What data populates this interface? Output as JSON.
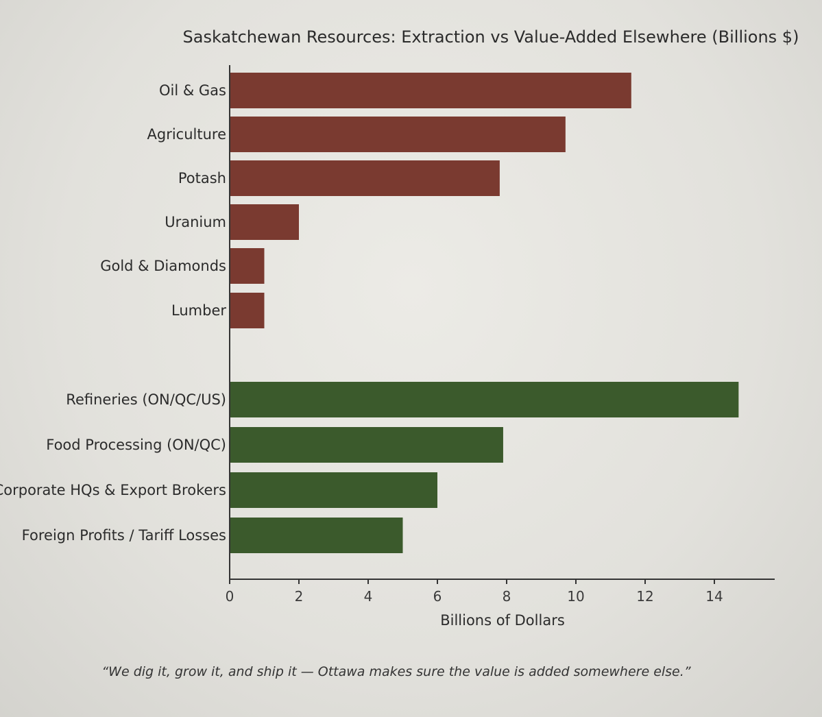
{
  "chart_data": {
    "type": "bar",
    "orientation": "horizontal",
    "title": "Saskatchewan Resources: Extraction vs Value-Added Elsewhere (Billions $)",
    "xlabel": "Billions of Dollars",
    "ylabel": "",
    "xlim": [
      0,
      15.5
    ],
    "xticks": [
      0,
      2,
      4,
      6,
      8,
      10,
      12,
      14
    ],
    "grid": false,
    "series": [
      {
        "color": "#7a3a30",
        "categories": [
          "Oil & Gas",
          "Agriculture",
          "Potash",
          "Uranium",
          "Gold & Diamonds",
          "Lumber"
        ],
        "values": [
          11.6,
          9.7,
          7.8,
          2.0,
          1.0,
          1.0
        ]
      },
      {
        "color": "#3b5a2c",
        "categories": [
          "Refineries (ON/QC/US)",
          "Food Processing (ON/QC)",
          "Corporate HQs & Export Brokers",
          "Foreign Profits / Tariff Losses"
        ],
        "values": [
          14.7,
          7.9,
          6.0,
          5.0
        ]
      }
    ],
    "caption": "“We dig it, grow it, and ship it — Ottawa makes sure the value is added somewhere else.”"
  }
}
